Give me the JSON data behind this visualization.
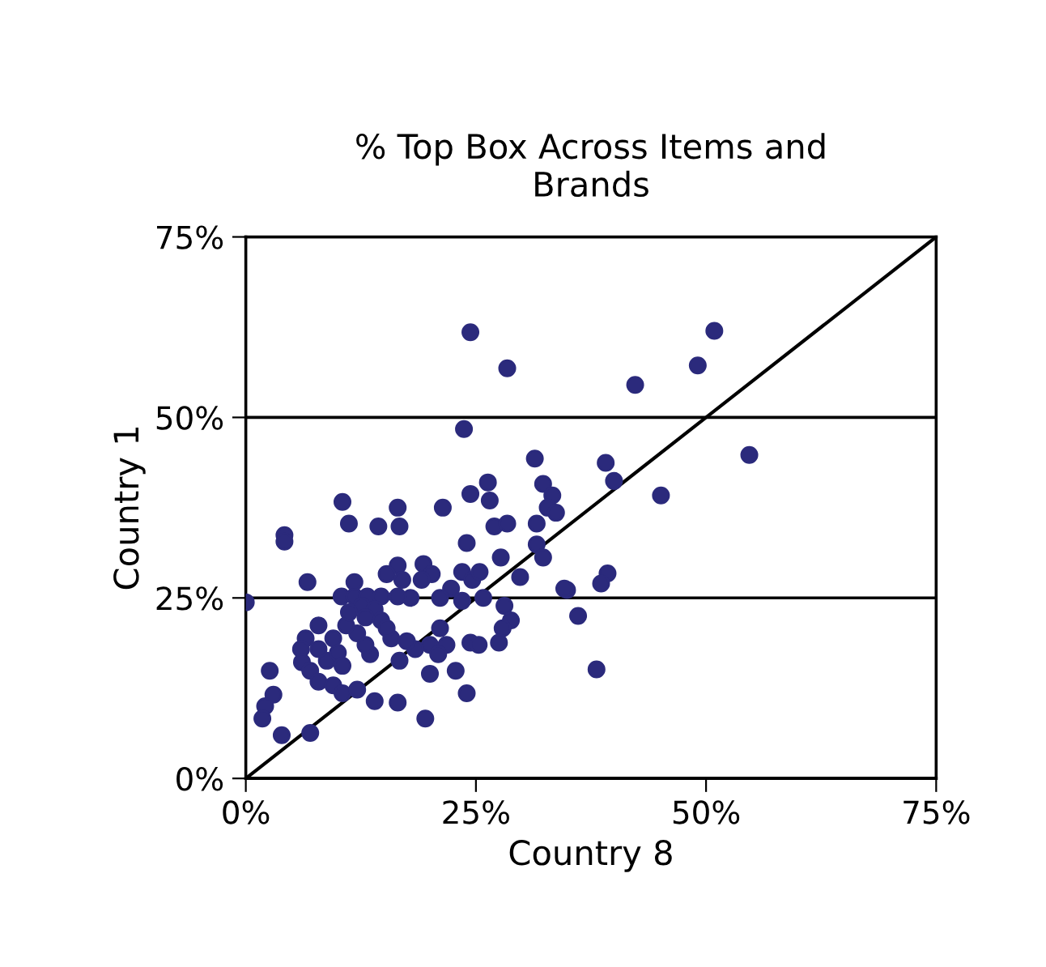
{
  "chart_data": {
    "type": "scatter",
    "title": "% Top Box Across Items and\nBrands",
    "xlabel": "Country 8",
    "ylabel": "Country 1",
    "xlim": [
      0,
      75
    ],
    "ylim": [
      0,
      75
    ],
    "xticks": [
      {
        "value": 0,
        "label": "0%"
      },
      {
        "value": 25,
        "label": "25%"
      },
      {
        "value": 50,
        "label": "50%"
      },
      {
        "value": 75,
        "label": "75%"
      }
    ],
    "yticks": [
      {
        "value": 0,
        "label": "0%"
      },
      {
        "value": 25,
        "label": "25%"
      },
      {
        "value": 50,
        "label": "50%"
      },
      {
        "value": 75,
        "label": "75%"
      }
    ],
    "grid": "y",
    "marker": "circle",
    "series": [
      {
        "color": "#2b2a7c",
        "x": [
          24.4,
          28.4,
          23.7,
          31.4,
          10.5,
          24.4,
          26.3,
          26.5,
          32.3,
          33.3,
          11.2,
          16.5,
          21.4,
          32.8,
          33.7,
          14.4,
          16.7,
          31.6,
          27,
          28.4,
          4.2,
          50.9,
          49.1,
          42.3,
          54.7,
          39.1,
          40,
          45.1,
          39.3,
          38.6,
          34.9,
          36.1,
          38.1,
          0,
          4.2,
          6.7,
          24,
          27.7,
          31.6,
          32.3,
          29.8,
          16.5,
          19.3,
          20.2,
          15.3,
          17,
          23.5,
          24.6,
          25.4,
          22.3,
          23.5,
          25.8,
          21.1,
          34.6,
          28.1,
          28.8,
          27.9,
          27.5,
          24.4,
          21.1,
          21.8,
          20,
          20.9,
          20,
          22.8,
          24,
          19.5,
          16.5,
          14,
          18.4,
          17.5,
          15.8,
          16.7,
          13.5,
          13,
          12.1,
          10.9,
          10.4,
          11.8,
          13.2,
          14.7,
          12.6,
          14,
          13,
          11.2,
          14.7,
          15.3,
          7.9,
          6.5,
          6,
          6.1,
          7,
          7.9,
          9.5,
          10.5,
          12.1,
          8.8,
          10,
          10.5,
          7.9,
          9.5,
          2.6,
          3,
          2.1,
          1.8,
          3.9,
          7,
          19.1,
          17.9,
          16.5,
          11.8,
          25.3
        ],
        "values": [
          61.8,
          56.8,
          48.4,
          44.3,
          38.3,
          39.4,
          41,
          38.5,
          40.8,
          39.2,
          35.3,
          37.5,
          37.5,
          37.5,
          36.8,
          34.9,
          34.9,
          35.3,
          34.9,
          35.3,
          33.7,
          62,
          57.2,
          54.5,
          44.8,
          43.7,
          41.2,
          39.2,
          28.4,
          27,
          26.1,
          22.5,
          15.1,
          24.4,
          32.8,
          27.2,
          32.6,
          30.6,
          32.4,
          30.6,
          27.9,
          29.5,
          29.7,
          28.3,
          28.3,
          27.5,
          28.6,
          27.5,
          28.6,
          26.3,
          24.6,
          25,
          25,
          26.3,
          23.9,
          21.9,
          20.8,
          18.8,
          18.8,
          20.8,
          18.5,
          18.5,
          17.2,
          14.5,
          14.9,
          11.8,
          8.3,
          10.5,
          10.7,
          17.9,
          19,
          19.4,
          16.3,
          17.2,
          18.5,
          20.1,
          21.2,
          25.2,
          25.2,
          25.2,
          25.2,
          23.9,
          23.4,
          22.3,
          23,
          21.9,
          20.8,
          21.2,
          19.4,
          17.9,
          16.1,
          14.9,
          13.4,
          12.9,
          11.8,
          12.3,
          16.3,
          17.4,
          15.6,
          17.9,
          19.4,
          14.9,
          11.6,
          10,
          8.3,
          6,
          6.3,
          27.5,
          25,
          25.2,
          27.2,
          18.5
        ]
      },
      {
        "type": "line",
        "color": "#000000",
        "marker": "none",
        "x": [
          0,
          75
        ],
        "values": [
          0,
          75
        ]
      }
    ]
  }
}
